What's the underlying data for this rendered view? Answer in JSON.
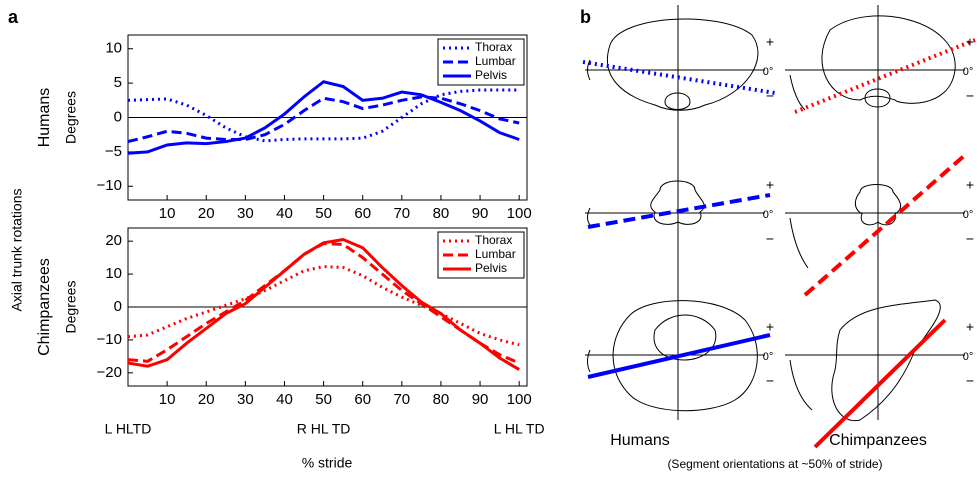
{
  "panel_a": {
    "label": "a",
    "ylabel": "Axial trunk rotations",
    "xlabel": "% stride",
    "events": [
      {
        "x": 0,
        "label": "L HLTD"
      },
      {
        "x": 50,
        "label": "R HL TD"
      },
      {
        "x": 100,
        "label": "L HL TD"
      }
    ]
  },
  "chart_data": [
    {
      "type": "line",
      "group_label": "Humans",
      "label_color": "#0000ff",
      "ylabel": "Degrees",
      "x": [
        0,
        5,
        10,
        15,
        20,
        25,
        30,
        35,
        40,
        45,
        50,
        55,
        60,
        65,
        70,
        75,
        80,
        85,
        90,
        95,
        100
      ],
      "xlim": [
        0,
        102
      ],
      "xticks": [
        10,
        20,
        30,
        40,
        50,
        60,
        70,
        80,
        90,
        100
      ],
      "ylim": [
        -12,
        12
      ],
      "yticks": [
        {
          "value": -10,
          "label": "−10"
        },
        {
          "value": -5,
          "label": "−5"
        },
        0,
        5,
        10
      ],
      "legend": "upper right",
      "series": [
        {
          "name": "Thorax",
          "color": "#0000ff",
          "style": "dotted",
          "values": [
            2.5,
            2.6,
            2.7,
            1.8,
            0.3,
            -1.5,
            -2.8,
            -3.4,
            -3.2,
            -3.1,
            -3.1,
            -3.1,
            -3.0,
            -2.0,
            0.0,
            2.0,
            3.3,
            3.8,
            4.0,
            4.0,
            4.0
          ]
        },
        {
          "name": "Lumbar",
          "color": "#0000ff",
          "style": "dashed",
          "values": [
            -3.5,
            -2.8,
            -2.0,
            -2.3,
            -3.0,
            -3.2,
            -3.2,
            -2.5,
            -1.0,
            1.0,
            2.8,
            2.3,
            1.3,
            1.8,
            2.5,
            3.0,
            2.8,
            2.0,
            1.0,
            -0.2,
            -0.8
          ]
        },
        {
          "name": "Pelvis",
          "color": "#0000ff",
          "style": "solid",
          "values": [
            -5.2,
            -5.0,
            -4.0,
            -3.7,
            -3.8,
            -3.5,
            -3.0,
            -1.5,
            0.5,
            3.0,
            5.2,
            4.5,
            2.5,
            2.8,
            3.7,
            3.3,
            2.2,
            1.0,
            -0.5,
            -2.2,
            -3.2
          ]
        }
      ]
    },
    {
      "type": "line",
      "group_label": "Chimpanzees",
      "label_color": "#ff0000",
      "ylabel": "Degrees",
      "x": [
        0,
        5,
        10,
        15,
        20,
        25,
        30,
        35,
        40,
        45,
        50,
        55,
        60,
        65,
        70,
        75,
        80,
        85,
        90,
        95,
        100
      ],
      "xlim": [
        0,
        102
      ],
      "xticks": [
        10,
        20,
        30,
        40,
        50,
        60,
        70,
        80,
        90,
        100
      ],
      "ylim": [
        -24,
        24
      ],
      "yticks": [
        {
          "value": -20,
          "label": "−20"
        },
        {
          "value": -10,
          "label": "−10"
        },
        0,
        10,
        20
      ],
      "legend": "upper right",
      "series": [
        {
          "name": "Thorax",
          "color": "#ff0000",
          "style": "dotted",
          "values": [
            -9,
            -8.5,
            -6,
            -3.5,
            -1.5,
            0.5,
            2.5,
            5,
            8,
            11,
            12.3,
            12,
            9.5,
            6,
            3,
            0.5,
            -2,
            -5,
            -8,
            -10,
            -11.5
          ]
        },
        {
          "name": "Lumbar",
          "color": "#ff0000",
          "style": "dashed",
          "values": [
            -16,
            -16.5,
            -13,
            -9,
            -5,
            -1.5,
            2,
            6.5,
            11,
            16,
            19.3,
            19,
            15,
            10,
            5,
            1,
            -3,
            -7,
            -11,
            -14.5,
            -17
          ]
        },
        {
          "name": "Pelvis",
          "color": "#ff0000",
          "style": "solid",
          "values": [
            -17,
            -18,
            -16,
            -11,
            -6.5,
            -2,
            1,
            6,
            11,
            16,
            19.5,
            20.5,
            18,
            12,
            6.5,
            1.5,
            -2,
            -7,
            -11,
            -15.5,
            -19
          ]
        }
      ]
    }
  ],
  "panel_b": {
    "label": "b",
    "groups": [
      "Humans",
      "Chimpanzees"
    ],
    "group_colors": [
      "#0000ff",
      "#ff0000"
    ],
    "signs": [
      "+",
      "0°",
      "−"
    ],
    "caption": "(Segment orientations at ~50% of stride)"
  }
}
